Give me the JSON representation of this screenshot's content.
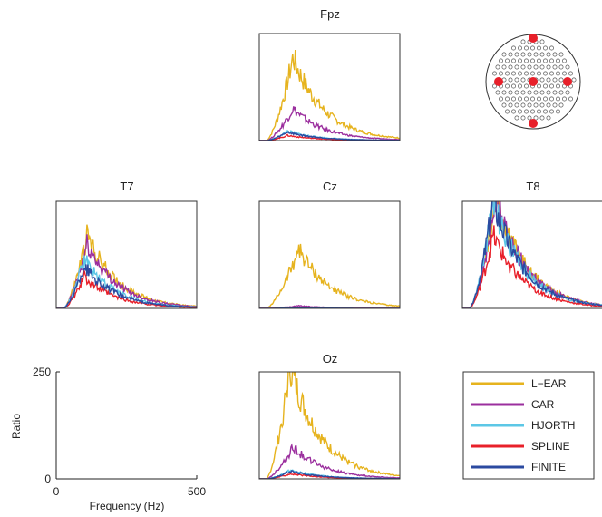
{
  "chart_data": [
    {
      "type": "line",
      "title": "Fpz",
      "panel": "Fpz",
      "xlim": [
        0,
        500
      ],
      "ylim": [
        0,
        250
      ],
      "series": [
        {
          "name": "L-EAR",
          "color": "#e6b31e",
          "peak": {
            "x": 120,
            "y": 195
          },
          "scale": 1.0
        },
        {
          "name": "CAR",
          "color": "#9b2f9e",
          "peak": {
            "x": 120,
            "y": 75
          },
          "scale": 1.0
        },
        {
          "name": "HJORTH",
          "color": "#5cc7e6",
          "peak": {
            "x": 100,
            "y": 22
          },
          "scale": 1.0
        },
        {
          "name": "SPLINE",
          "color": "#e8202a",
          "peak": {
            "x": 100,
            "y": 12
          },
          "scale": 1.0
        },
        {
          "name": "FINITE",
          "color": "#2b4aa0",
          "peak": {
            "x": 100,
            "y": 20
          },
          "scale": 1.0
        }
      ]
    },
    {
      "type": "line",
      "title": "T7",
      "panel": "T7",
      "xlim": [
        0,
        500
      ],
      "ylim": [
        0,
        250
      ],
      "series": [
        {
          "name": "L-EAR",
          "color": "#e6b31e",
          "peak": {
            "x": 110,
            "y": 170
          }
        },
        {
          "name": "CAR",
          "color": "#9b2f9e",
          "peak": {
            "x": 110,
            "y": 150
          }
        },
        {
          "name": "HJORTH",
          "color": "#5cc7e6",
          "peak": {
            "x": 100,
            "y": 115
          }
        },
        {
          "name": "SPLINE",
          "color": "#e8202a",
          "peak": {
            "x": 100,
            "y": 75
          }
        },
        {
          "name": "FINITE",
          "color": "#2b4aa0",
          "peak": {
            "x": 100,
            "y": 100
          }
        }
      ]
    },
    {
      "type": "line",
      "title": "Cz",
      "panel": "Cz",
      "xlim": [
        0,
        500
      ],
      "ylim": [
        0,
        250
      ],
      "series": [
        {
          "name": "L-EAR",
          "color": "#e6b31e",
          "peak": {
            "x": 140,
            "y": 140
          }
        },
        {
          "name": "CAR",
          "color": "#9b2f9e",
          "peak": {
            "x": 140,
            "y": 6
          }
        },
        {
          "name": "HJORTH",
          "color": "#5cc7e6",
          "peak": {
            "x": 140,
            "y": 2
          }
        },
        {
          "name": "SPLINE",
          "color": "#e8202a",
          "peak": {
            "x": 140,
            "y": 1
          }
        },
        {
          "name": "FINITE",
          "color": "#2b4aa0",
          "peak": {
            "x": 140,
            "y": 2
          }
        }
      ]
    },
    {
      "type": "line",
      "title": "T8",
      "panel": "T8",
      "xlim": [
        0,
        500
      ],
      "ylim": [
        0,
        250
      ],
      "series": [
        {
          "name": "L-EAR",
          "color": "#e6b31e",
          "peak": {
            "x": 120,
            "y": 260
          }
        },
        {
          "name": "CAR",
          "color": "#9b2f9e",
          "peak": {
            "x": 120,
            "y": 250
          }
        },
        {
          "name": "HJORTH",
          "color": "#5cc7e6",
          "peak": {
            "x": 110,
            "y": 250
          }
        },
        {
          "name": "SPLINE",
          "color": "#e8202a",
          "peak": {
            "x": 110,
            "y": 170
          }
        },
        {
          "name": "FINITE",
          "color": "#2b4aa0",
          "peak": {
            "x": 110,
            "y": 250
          }
        }
      ]
    },
    {
      "type": "line",
      "title": "Oz",
      "panel": "Oz",
      "xlim": [
        0,
        500
      ],
      "ylim": [
        0,
        250
      ],
      "series": [
        {
          "name": "L-EAR",
          "color": "#e6b31e",
          "peak": {
            "x": 110,
            "y": 260
          }
        },
        {
          "name": "CAR",
          "color": "#9b2f9e",
          "peak": {
            "x": 120,
            "y": 75
          }
        },
        {
          "name": "HJORTH",
          "color": "#5cc7e6",
          "peak": {
            "x": 110,
            "y": 20
          }
        },
        {
          "name": "SPLINE",
          "color": "#e8202a",
          "peak": {
            "x": 110,
            "y": 12
          }
        },
        {
          "name": "FINITE",
          "color": "#2b4aa0",
          "peak": {
            "x": 110,
            "y": 18
          }
        }
      ]
    },
    {
      "type": "line",
      "panel": "axes-reference",
      "title": "",
      "xlabel": "Frequency (Hz)",
      "ylabel": "Ratio",
      "xlim": [
        0,
        500
      ],
      "ylim": [
        0,
        250
      ],
      "xticks": [
        "0",
        "500"
      ],
      "yticks": [
        "0",
        "250"
      ],
      "series": []
    }
  ],
  "legend": {
    "placement": "bottom-right",
    "entries": [
      {
        "label": "L−EAR",
        "color": "#e6b31e"
      },
      {
        "label": "CAR",
        "color": "#9b2f9e"
      },
      {
        "label": "HJORTH",
        "color": "#5cc7e6"
      },
      {
        "label": "SPLINE",
        "color": "#e8202a"
      },
      {
        "label": "FINITE",
        "color": "#2b4aa0"
      }
    ]
  },
  "headmap": {
    "highlight_color": "#e8202a",
    "highlighted_electrodes": [
      "Fpz",
      "T7",
      "Cz",
      "T8",
      "Oz"
    ]
  },
  "colors": {
    "axis": "#222222",
    "frame": "#333333"
  }
}
